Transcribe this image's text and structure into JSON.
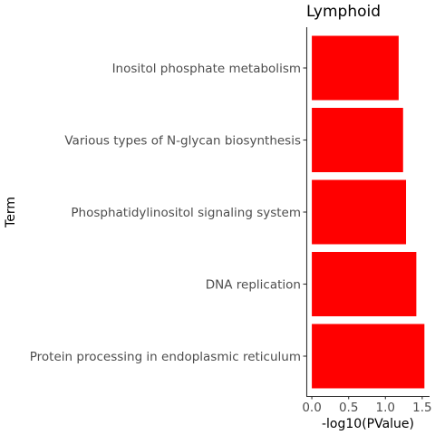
{
  "chart_data": {
    "type": "bar",
    "orientation": "horizontal",
    "title": "Lymphoid",
    "xlabel": "-log10(PValue)",
    "ylabel": "Term",
    "categories": [
      "Inositol phosphate metabolism",
      "Various types of N-glycan biosynthesis",
      "Phosphatidylinositol signaling system",
      "DNA replication",
      "Protein processing in endoplasmic reticulum"
    ],
    "values": [
      1.18,
      1.24,
      1.28,
      1.42,
      1.53
    ],
    "xlim": [
      -0.075,
      1.6
    ],
    "xticks": [
      0.0,
      0.5,
      1.0,
      1.5
    ],
    "xtick_labels": [
      "0.0",
      "0.5",
      "1.0",
      "1.5"
    ],
    "bar_color": "#ff0000",
    "grid": false
  }
}
